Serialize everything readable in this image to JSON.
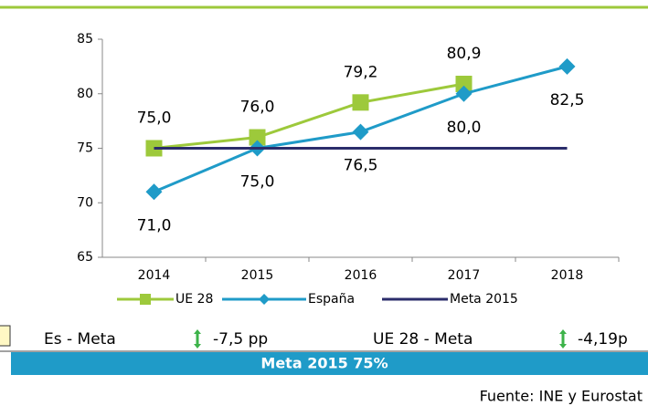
{
  "chart_data": {
    "type": "line",
    "categories": [
      "2014",
      "2015",
      "2016",
      "2017",
      "2018"
    ],
    "series": [
      {
        "name": "UE 28",
        "color": "#9dc93b",
        "marker": "square",
        "label_position": "above",
        "values": [
          75.0,
          76.0,
          79.2,
          80.9,
          null
        ],
        "value_labels": [
          "75,0",
          "76,0",
          "79,2",
          "80,9",
          null
        ]
      },
      {
        "name": "España",
        "color": "#1f9bc8",
        "marker": "diamond",
        "label_position": "below",
        "values": [
          71.0,
          75.0,
          76.5,
          80.0,
          82.5
        ],
        "value_labels": [
          "71,0",
          "75,0",
          "76,5",
          "80,0",
          "82,5"
        ]
      },
      {
        "name": "Meta 2015",
        "color": "#2b2d6b",
        "marker": "none",
        "values": [
          75,
          75,
          75,
          75,
          75
        ]
      }
    ],
    "ylim": [
      65,
      85
    ],
    "yticks": [
      65,
      70,
      75,
      80,
      85
    ],
    "grid": false,
    "legend": "bottom"
  },
  "comparisons": [
    {
      "label": "Es - Meta",
      "value": "-7,5 pp"
    },
    {
      "label": "UE 28 - Meta",
      "value": "-4,19p"
    }
  ],
  "banner": "Meta 2015 75%",
  "source": "Fuente: INE y Eurostat"
}
